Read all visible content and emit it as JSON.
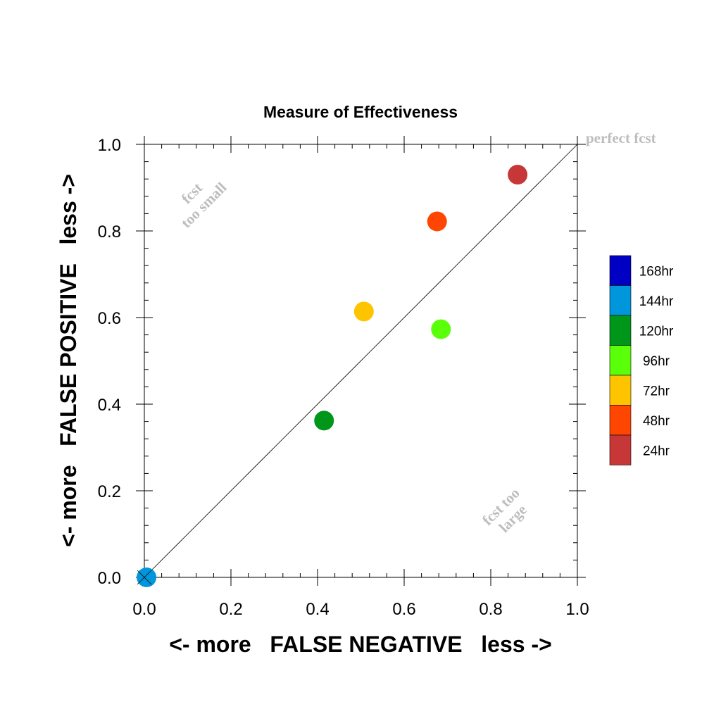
{
  "chart_data": {
    "type": "scatter",
    "title": "Measure of Effectiveness",
    "xlabel": "<- more   FALSE NEGATIVE   less ->",
    "ylabel": "<- more   FALSE POSITIVE   less ->",
    "xlim": [
      0,
      1
    ],
    "ylim": [
      0,
      1
    ],
    "xticks": [
      "0.0",
      "0.2",
      "0.4",
      "0.6",
      "0.8",
      "1.0"
    ],
    "yticks": [
      "0.0",
      "0.2",
      "0.4",
      "0.6",
      "0.8",
      "1.0"
    ],
    "grid": false,
    "diagonal_line": true,
    "annotations": {
      "perfect": "perfect fcst",
      "small_line1": "fcst",
      "small_line2": "too small",
      "large_line1": "fcst too",
      "large_line2": "large"
    },
    "legend_position": "right",
    "points": [
      {
        "label": "168hr",
        "x": null,
        "y": null,
        "color": "#0000c4"
      },
      {
        "label": "144hr",
        "x": 0.005,
        "y": 0.0,
        "color": "#0096dc"
      },
      {
        "label": "120hr",
        "x": 0.415,
        "y": 0.362,
        "color": "#00961a"
      },
      {
        "label": "96hr",
        "x": 0.685,
        "y": 0.573,
        "color": "#5aff0a"
      },
      {
        "label": "72hr",
        "x": 0.507,
        "y": 0.614,
        "color": "#ffc400"
      },
      {
        "label": "48hr",
        "x": 0.676,
        "y": 0.822,
        "color": "#ff4600"
      },
      {
        "label": "24hr",
        "x": 0.862,
        "y": 0.93,
        "color": "#c83737"
      }
    ]
  }
}
